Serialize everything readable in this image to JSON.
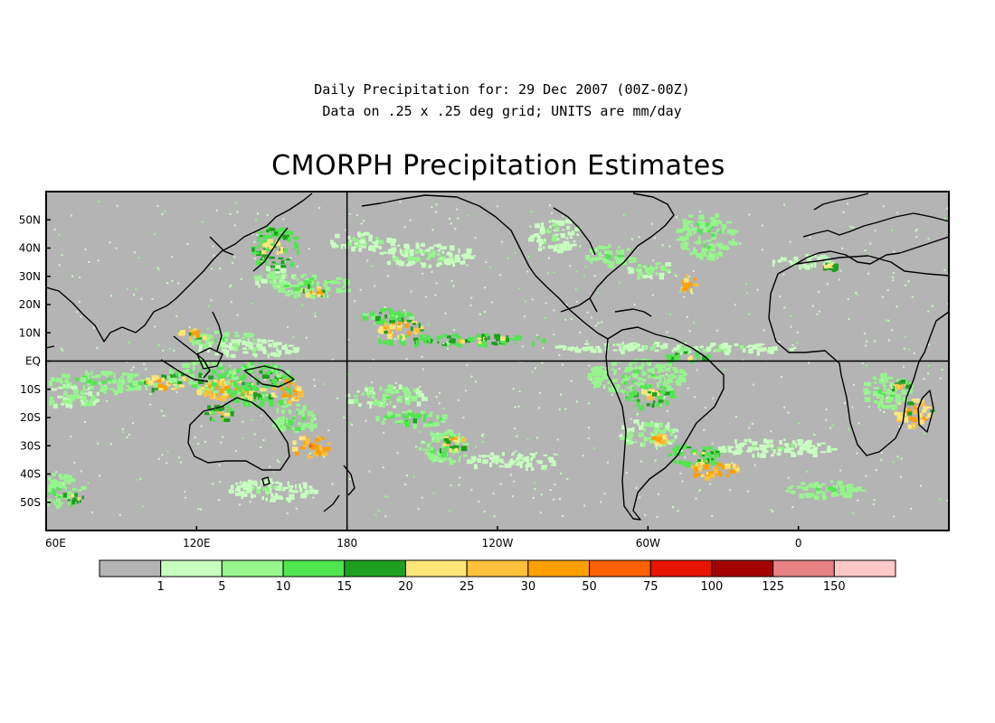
{
  "header": {
    "line1": "Daily Precipitation for: 29 Dec 2007 (00Z-00Z)",
    "line2": "Data on .25 x .25 deg grid; UNITS are mm/day",
    "title": "CMORPH Precipitation Estimates"
  },
  "map": {
    "lon_range": [
      60,
      420
    ],
    "lat_range": [
      -60,
      60
    ],
    "lat_labels": [
      {
        "lat": 50,
        "text": "50N"
      },
      {
        "lat": 40,
        "text": "40N"
      },
      {
        "lat": 30,
        "text": "30N"
      },
      {
        "lat": 20,
        "text": "20N"
      },
      {
        "lat": 10,
        "text": "10N"
      },
      {
        "lat": 0,
        "text": "EQ"
      },
      {
        "lat": -10,
        "text": "10S"
      },
      {
        "lat": -20,
        "text": "20S"
      },
      {
        "lat": -30,
        "text": "30S"
      },
      {
        "lat": -40,
        "text": "40S"
      },
      {
        "lat": -50,
        "text": "50S"
      }
    ],
    "lon_labels": [
      {
        "lon": 60,
        "text": "60E"
      },
      {
        "lon": 120,
        "text": "120E"
      },
      {
        "lon": 180,
        "text": "180"
      },
      {
        "lon": 240,
        "text": "120W"
      },
      {
        "lon": 300,
        "text": "60W"
      },
      {
        "lon": 360,
        "text": "0"
      }
    ],
    "reference_lines": {
      "equator_lat": 0,
      "dateline_lon": 180
    },
    "background_color": "#b4b4b4",
    "coastline_color": "#000000"
  },
  "colorbar": {
    "units": "mm/day",
    "colors": [
      "#b4b4b4",
      "#c8ffc0",
      "#96f58c",
      "#50e650",
      "#1ea01e",
      "#ffe678",
      "#ffc03c",
      "#ffa000",
      "#ff6000",
      "#e61400",
      "#a50000",
      "#e68282",
      "#ffc8c8"
    ],
    "labels": [
      "1",
      "5",
      "10",
      "15",
      "20",
      "25",
      "30",
      "50",
      "75",
      "100",
      "125",
      "150"
    ]
  },
  "chart_data": {
    "type": "heatmap",
    "title": "CMORPH Precipitation Estimates",
    "subtitle": "Daily Precipitation for: 29 Dec 2007 (00Z-00Z)",
    "units": "mm/day",
    "x_range": [
      60,
      420
    ],
    "y_range": [
      -60,
      60
    ],
    "levels": [
      1,
      5,
      10,
      15,
      20,
      25,
      30,
      50,
      75,
      100,
      125,
      150
    ],
    "regions": [
      {
        "lon": 82,
        "lat": -7,
        "dlon": 22,
        "dlat": 4,
        "val": 12
      },
      {
        "lon": 107,
        "lat": -7,
        "dlon": 10,
        "dlat": 3,
        "val": 35
      },
      {
        "lon": 70,
        "lat": -12,
        "dlon": 12,
        "dlat": 4,
        "val": 8
      },
      {
        "lon": 62,
        "lat": -45,
        "dlon": 12,
        "dlat": 6,
        "val": 10
      },
      {
        "lon": 70,
        "lat": -48,
        "dlon": 6,
        "dlat": 2,
        "val": 22
      },
      {
        "lon": 122,
        "lat": -5,
        "dlon": 14,
        "dlat": 6,
        "val": 14
      },
      {
        "lon": 132,
        "lat": -10,
        "dlon": 12,
        "dlat": 4,
        "val": 40
      },
      {
        "lon": 128,
        "lat": -18,
        "dlon": 6,
        "dlat": 3,
        "val": 25
      },
      {
        "lon": 145,
        "lat": -8,
        "dlon": 14,
        "dlat": 8,
        "val": 18
      },
      {
        "lon": 155,
        "lat": -10,
        "dlon": 6,
        "dlat": 4,
        "val": 45
      },
      {
        "lon": 158,
        "lat": -20,
        "dlon": 10,
        "dlat": 5,
        "val": 12
      },
      {
        "lon": 165,
        "lat": -30,
        "dlon": 8,
        "dlat": 4,
        "val": 45
      },
      {
        "lon": 150,
        "lat": -45,
        "dlon": 18,
        "dlat": 4,
        "val": 5
      },
      {
        "lon": 130,
        "lat": 8,
        "dlon": 14,
        "dlat": 3,
        "val": 10
      },
      {
        "lon": 118,
        "lat": 10,
        "dlon": 6,
        "dlat": 2,
        "val": 35
      },
      {
        "lon": 140,
        "lat": 5,
        "dlon": 20,
        "dlat": 3,
        "val": 6
      },
      {
        "lon": 150,
        "lat": 40,
        "dlon": 10,
        "dlat": 8,
        "val": 22
      },
      {
        "lon": 150,
        "lat": 30,
        "dlon": 8,
        "dlat": 4,
        "val": 8
      },
      {
        "lon": 165,
        "lat": 27,
        "dlon": 16,
        "dlat": 4,
        "val": 12
      },
      {
        "lon": 166,
        "lat": 25,
        "dlon": 5,
        "dlat": 2,
        "val": 32
      },
      {
        "lon": 185,
        "lat": 43,
        "dlon": 14,
        "dlat": 3,
        "val": 6
      },
      {
        "lon": 210,
        "lat": 38,
        "dlon": 20,
        "dlat": 4,
        "val": 6
      },
      {
        "lon": 195,
        "lat": 16,
        "dlon": 10,
        "dlat": 3,
        "val": 18
      },
      {
        "lon": 200,
        "lat": 12,
        "dlon": 10,
        "dlat": 3,
        "val": 35
      },
      {
        "lon": 225,
        "lat": 8,
        "dlon": 35,
        "dlat": 2,
        "val": 22
      },
      {
        "lon": 195,
        "lat": -12,
        "dlon": 16,
        "dlat": 4,
        "val": 8
      },
      {
        "lon": 205,
        "lat": -20,
        "dlon": 14,
        "dlat": 3,
        "val": 14
      },
      {
        "lon": 218,
        "lat": -30,
        "dlon": 10,
        "dlat": 6,
        "val": 12
      },
      {
        "lon": 222,
        "lat": -28,
        "dlon": 5,
        "dlat": 3,
        "val": 35
      },
      {
        "lon": 245,
        "lat": -35,
        "dlon": 18,
        "dlat": 3,
        "val": 4
      },
      {
        "lon": 262,
        "lat": 45,
        "dlon": 10,
        "dlat": 6,
        "val": 6
      },
      {
        "lon": 285,
        "lat": 38,
        "dlon": 10,
        "dlat": 4,
        "val": 10
      },
      {
        "lon": 300,
        "lat": 33,
        "dlon": 10,
        "dlat": 3,
        "val": 8
      },
      {
        "lon": 322,
        "lat": 45,
        "dlon": 12,
        "dlat": 8,
        "val": 12
      },
      {
        "lon": 316,
        "lat": 28,
        "dlon": 4,
        "dlat": 3,
        "val": 45
      },
      {
        "lon": 295,
        "lat": -5,
        "dlon": 20,
        "dlat": 6,
        "val": 10
      },
      {
        "lon": 300,
        "lat": -12,
        "dlon": 10,
        "dlat": 4,
        "val": 22
      },
      {
        "lon": 300,
        "lat": -25,
        "dlon": 12,
        "dlat": 5,
        "val": 8
      },
      {
        "lon": 303,
        "lat": -27,
        "dlon": 4,
        "dlat": 2,
        "val": 40
      },
      {
        "lon": 318,
        "lat": -33,
        "dlon": 12,
        "dlat": 4,
        "val": 20
      },
      {
        "lon": 326,
        "lat": -38,
        "dlon": 10,
        "dlat": 3,
        "val": 45
      },
      {
        "lon": 310,
        "lat": 5,
        "dlon": 50,
        "dlat": 2,
        "val": 6
      },
      {
        "lon": 315,
        "lat": 2,
        "dlon": 10,
        "dlat": 2,
        "val": 22
      },
      {
        "lon": 350,
        "lat": -30,
        "dlon": 25,
        "dlat": 3,
        "val": 5
      },
      {
        "lon": 370,
        "lat": -45,
        "dlon": 16,
        "dlat": 3,
        "val": 10
      },
      {
        "lon": 395,
        "lat": -10,
        "dlon": 10,
        "dlat": 6,
        "val": 10
      },
      {
        "lon": 405,
        "lat": -18,
        "dlon": 8,
        "dlat": 5,
        "val": 35
      },
      {
        "lon": 400,
        "lat": -8,
        "dlon": 4,
        "dlat": 2,
        "val": 25
      },
      {
        "lon": 362,
        "lat": 36,
        "dlon": 14,
        "dlat": 2,
        "val": 6
      },
      {
        "lon": 372,
        "lat": 34,
        "dlon": 3,
        "dlat": 1,
        "val": 28
      }
    ]
  }
}
